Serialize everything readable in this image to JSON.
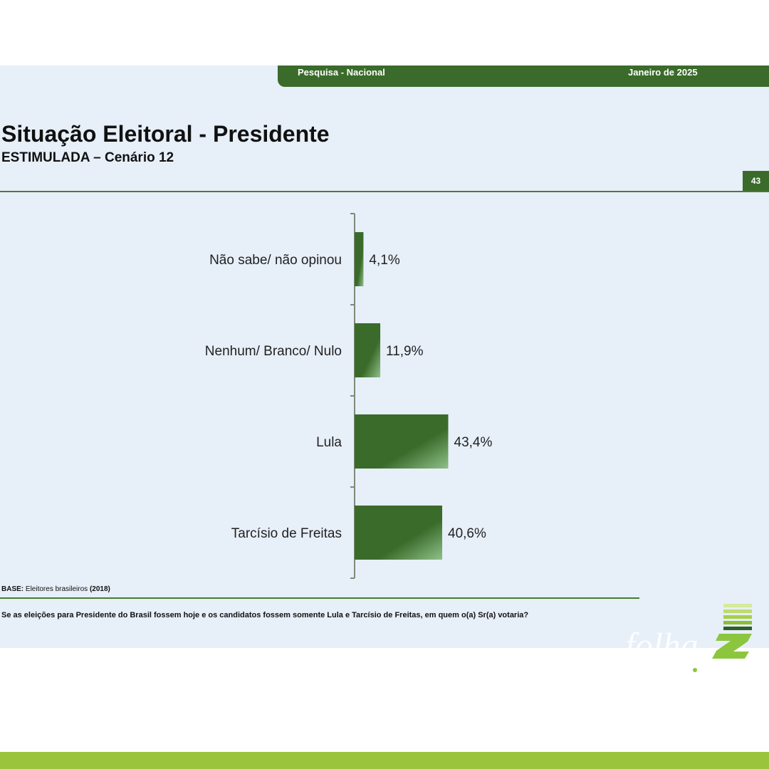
{
  "header": {
    "survey": "Pesquisa - Nacional",
    "date": "Janeiro de 2025",
    "page_number": "43"
  },
  "chart_data": {
    "type": "bar",
    "orientation": "horizontal",
    "title": "Situação Eleitoral - Presidente",
    "subtitle": "ESTIMULADA – Cenário 12",
    "categories": [
      "Não sabe/ não opinou",
      "Nenhum/ Branco/ Nulo",
      "Lula",
      "Tarcísio de Freitas"
    ],
    "values": [
      4.1,
      11.9,
      43.4,
      40.6
    ],
    "value_labels": [
      "4,1%",
      "11,9%",
      "43,4%",
      "40,6%"
    ],
    "xlim": [
      0,
      100
    ],
    "grid": false,
    "legend": "none",
    "bar_color": "#3a6b2a"
  },
  "footer": {
    "base_label": "BASE:",
    "base_text": "Eleitores brasileiros",
    "base_year": "(2018)",
    "question": "Se as eleições para Presidente do Brasil fossem hoje e os candidatos fossem somente Lula e Tarcísio de Freitas, em quem o(a) Sr(a) votaria?"
  },
  "brand": {
    "logo_text": "folha Z",
    "accent": "#9ac43b"
  }
}
